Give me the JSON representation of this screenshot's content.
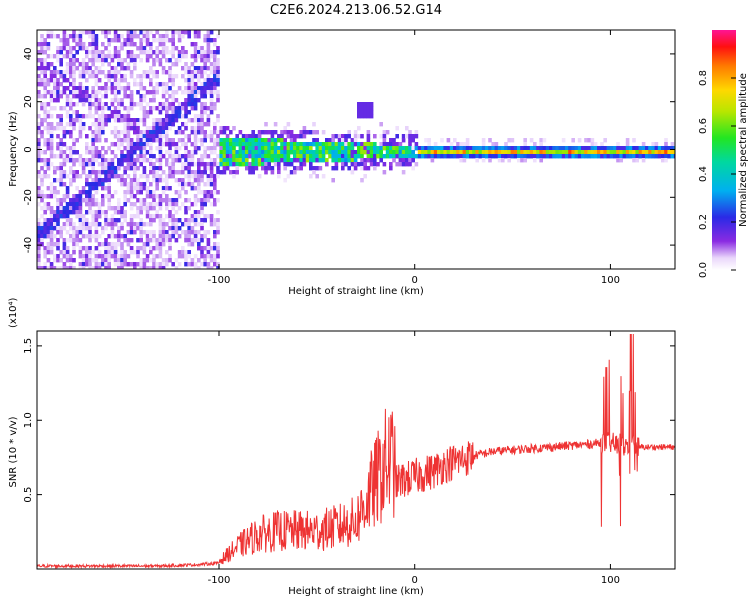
{
  "title": "C2E6.2024.213.06.52.G14",
  "chart_data": [
    {
      "type": "heatmap",
      "xlabel": "Height of straight line (km)",
      "ylabel": "Frequency (Hz)",
      "xlim": [
        -193,
        133
      ],
      "ylim": [
        -50,
        50
      ],
      "xticks": [
        -100,
        0,
        100
      ],
      "yticks": [
        -40,
        -20,
        0,
        20,
        40
      ],
      "colorbar": {
        "label": "Normalized spectral amplitude",
        "range": [
          0,
          1
        ],
        "ticks": [
          "0.0",
          "0.2",
          "0.4",
          "0.6",
          "0.8"
        ]
      }
    },
    {
      "type": "line",
      "xlabel": "Height of straight line (km)",
      "ylabel": "SNR (10 * v/v)",
      "scale_label": "(x10⁴)",
      "xlim": [
        -193,
        133
      ],
      "ylim": [
        0,
        1.6
      ],
      "xticks": [
        -100,
        0,
        100
      ],
      "yticks": [
        "0.5",
        "1.0",
        "1.5"
      ],
      "series": [
        {
          "color": "#ee3333",
          "x": [
            -193,
            -170,
            -150,
            -130,
            -110,
            -100,
            -95,
            -90,
            -80,
            -70,
            -60,
            -50,
            -40,
            -30,
            -25,
            -20,
            -15,
            -10,
            -5,
            0,
            5,
            10,
            15,
            20,
            30,
            40,
            50,
            60,
            70,
            80,
            90,
            95,
            100,
            105,
            110,
            113,
            120,
            133
          ],
          "values": [
            0.02,
            0.02,
            0.02,
            0.02,
            0.03,
            0.04,
            0.08,
            0.12,
            0.18,
            0.2,
            0.2,
            0.2,
            0.22,
            0.25,
            0.35,
            0.45,
            0.55,
            0.58,
            0.6,
            0.62,
            0.64,
            0.66,
            0.7,
            0.72,
            0.76,
            0.79,
            0.8,
            0.81,
            0.82,
            0.83,
            0.84,
            0.85,
            0.85,
            0.82,
            0.83,
            0.82,
            0.82,
            0.82
          ]
        }
      ]
    }
  ]
}
